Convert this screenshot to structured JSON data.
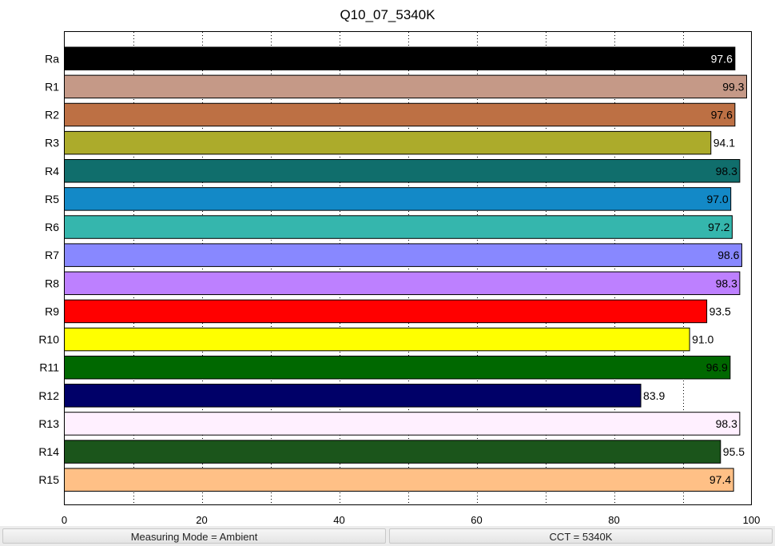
{
  "chart_data": {
    "type": "bar",
    "orientation": "horizontal",
    "title": "Q10_07_5340K",
    "xlabel": "",
    "ylabel": "",
    "xlim": [
      0,
      100
    ],
    "x_ticks": [
      "0",
      "20",
      "40",
      "60",
      "80",
      "100"
    ],
    "grid": "vertical dotted at every 10",
    "categories": [
      "Ra",
      "R1",
      "R2",
      "R3",
      "R4",
      "R5",
      "R6",
      "R7",
      "R8",
      "R9",
      "R10",
      "R11",
      "R12",
      "R13",
      "R14",
      "R15"
    ],
    "values": [
      97.6,
      99.3,
      97.6,
      94.1,
      98.3,
      97.0,
      97.2,
      98.6,
      98.3,
      93.5,
      91.0,
      96.9,
      83.9,
      98.3,
      95.5,
      97.4
    ],
    "value_labels": [
      "97.6",
      "99.3",
      "97.6",
      "94.1",
      "98.3",
      "97.0",
      "97.2",
      "98.6",
      "98.3",
      "93.5",
      "91.0",
      "96.9",
      "83.9",
      "98.3",
      "95.5",
      "97.4"
    ],
    "colors": [
      "#000000",
      "#c59987",
      "#bd7044",
      "#acab2b",
      "#106e6c",
      "#1389c7",
      "#35b6ad",
      "#8888ff",
      "#bd80ff",
      "#ff0000",
      "#ffff00",
      "#006800",
      "#000068",
      "#fff0ff",
      "#1b551b",
      "#ffc086"
    ],
    "label_colors": [
      "#ffffff",
      "#000000",
      "#000000",
      "#000000",
      "#000000",
      "#000000",
      "#000000",
      "#000000",
      "#000000",
      "#000000",
      "#000000",
      "#000000",
      "#000000",
      "#000000",
      "#000000",
      "#000000"
    ]
  },
  "status_bar": {
    "measuring_mode": "Measuring Mode = Ambient",
    "cct": "CCT = 5340K"
  }
}
